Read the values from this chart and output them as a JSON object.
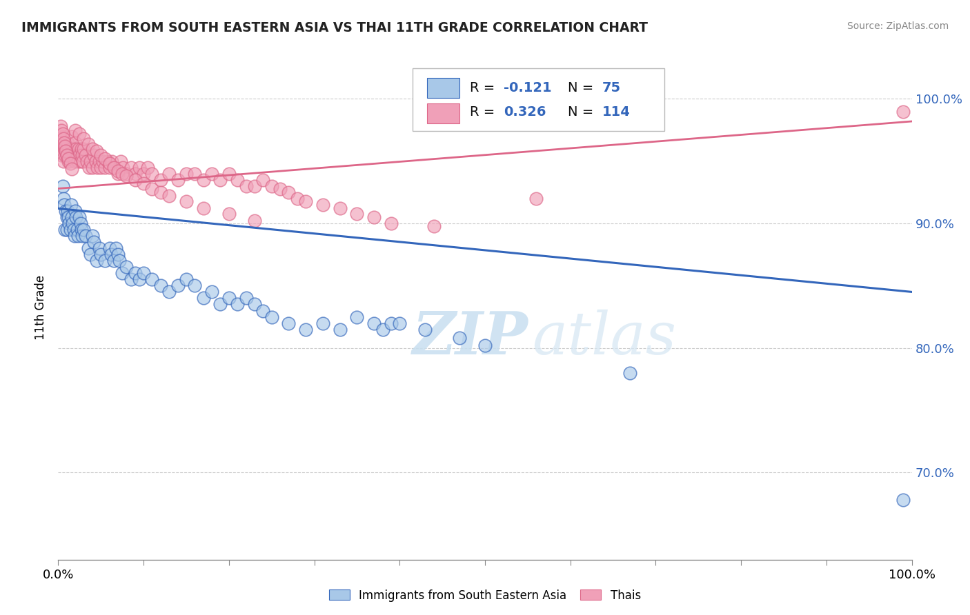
{
  "title": "IMMIGRANTS FROM SOUTH EASTERN ASIA VS THAI 11TH GRADE CORRELATION CHART",
  "source": "Source: ZipAtlas.com",
  "ylabel": "11th Grade",
  "r_blue": -0.121,
  "n_blue": 75,
  "r_pink": 0.326,
  "n_pink": 114,
  "blue_color": "#a8c8e8",
  "pink_color": "#f0a0b8",
  "blue_line_color": "#3366bb",
  "pink_line_color": "#dd6688",
  "watermark_zip": "ZIP",
  "watermark_atlas": "atlas",
  "yaxis_ticks": [
    0.7,
    0.8,
    0.9,
    1.0
  ],
  "yaxis_labels": [
    "70.0%",
    "80.0%",
    "90.0%",
    "100.0%"
  ],
  "grid_color": "#cccccc",
  "legend_label_blue": "Immigrants from South Eastern Asia",
  "legend_label_pink": "Thais",
  "blue_line_x0": 0.0,
  "blue_line_x1": 1.0,
  "blue_line_y0": 0.912,
  "blue_line_y1": 0.845,
  "pink_line_x0": 0.0,
  "pink_line_x1": 1.0,
  "pink_line_y0": 0.928,
  "pink_line_y1": 0.982,
  "ylim_min": 0.63,
  "ylim_max": 1.035,
  "xlim_min": 0.0,
  "xlim_max": 1.0,
  "blue_x": [
    0.005,
    0.006,
    0.007,
    0.008,
    0.009,
    0.01,
    0.01,
    0.011,
    0.012,
    0.013,
    0.014,
    0.015,
    0.016,
    0.017,
    0.018,
    0.019,
    0.02,
    0.021,
    0.022,
    0.023,
    0.025,
    0.026,
    0.027,
    0.028,
    0.03,
    0.032,
    0.035,
    0.038,
    0.04,
    0.042,
    0.045,
    0.048,
    0.05,
    0.055,
    0.06,
    0.062,
    0.065,
    0.068,
    0.07,
    0.072,
    0.075,
    0.08,
    0.085,
    0.09,
    0.095,
    0.1,
    0.11,
    0.12,
    0.13,
    0.14,
    0.15,
    0.16,
    0.17,
    0.18,
    0.19,
    0.2,
    0.21,
    0.22,
    0.23,
    0.24,
    0.25,
    0.27,
    0.29,
    0.31,
    0.33,
    0.35,
    0.37,
    0.38,
    0.39,
    0.4,
    0.43,
    0.47,
    0.5,
    0.67,
    0.99
  ],
  "blue_y": [
    0.93,
    0.92,
    0.915,
    0.895,
    0.91,
    0.905,
    0.895,
    0.91,
    0.905,
    0.9,
    0.895,
    0.915,
    0.905,
    0.9,
    0.895,
    0.89,
    0.91,
    0.905,
    0.895,
    0.89,
    0.905,
    0.9,
    0.895,
    0.89,
    0.895,
    0.89,
    0.88,
    0.875,
    0.89,
    0.885,
    0.87,
    0.88,
    0.875,
    0.87,
    0.88,
    0.875,
    0.87,
    0.88,
    0.875,
    0.87,
    0.86,
    0.865,
    0.855,
    0.86,
    0.855,
    0.86,
    0.855,
    0.85,
    0.845,
    0.85,
    0.855,
    0.85,
    0.84,
    0.845,
    0.835,
    0.84,
    0.835,
    0.84,
    0.835,
    0.83,
    0.825,
    0.82,
    0.815,
    0.82,
    0.815,
    0.825,
    0.82,
    0.815,
    0.82,
    0.82,
    0.815,
    0.808,
    0.802,
    0.78,
    0.678
  ],
  "pink_x": [
    0.002,
    0.003,
    0.004,
    0.005,
    0.006,
    0.007,
    0.008,
    0.009,
    0.01,
    0.011,
    0.012,
    0.013,
    0.014,
    0.015,
    0.016,
    0.017,
    0.018,
    0.019,
    0.02,
    0.021,
    0.022,
    0.023,
    0.024,
    0.025,
    0.026,
    0.027,
    0.028,
    0.029,
    0.03,
    0.032,
    0.034,
    0.036,
    0.038,
    0.04,
    0.042,
    0.044,
    0.046,
    0.048,
    0.05,
    0.052,
    0.055,
    0.058,
    0.06,
    0.063,
    0.066,
    0.07,
    0.073,
    0.076,
    0.08,
    0.085,
    0.09,
    0.095,
    0.1,
    0.105,
    0.11,
    0.12,
    0.13,
    0.14,
    0.15,
    0.16,
    0.17,
    0.18,
    0.19,
    0.2,
    0.21,
    0.22,
    0.23,
    0.24,
    0.25,
    0.26,
    0.27,
    0.28,
    0.29,
    0.31,
    0.33,
    0.35,
    0.37,
    0.39,
    0.02,
    0.025,
    0.03,
    0.035,
    0.04,
    0.045,
    0.05,
    0.055,
    0.06,
    0.065,
    0.07,
    0.075,
    0.08,
    0.09,
    0.1,
    0.11,
    0.12,
    0.13,
    0.15,
    0.17,
    0.2,
    0.23,
    0.003,
    0.004,
    0.005,
    0.006,
    0.007,
    0.008,
    0.009,
    0.01,
    0.012,
    0.014,
    0.016,
    0.44,
    0.56,
    0.99
  ],
  "pink_y": [
    0.96,
    0.965,
    0.955,
    0.97,
    0.95,
    0.96,
    0.955,
    0.96,
    0.955,
    0.965,
    0.95,
    0.96,
    0.955,
    0.96,
    0.97,
    0.96,
    0.955,
    0.95,
    0.965,
    0.96,
    0.955,
    0.95,
    0.96,
    0.955,
    0.95,
    0.96,
    0.955,
    0.95,
    0.96,
    0.955,
    0.95,
    0.945,
    0.95,
    0.945,
    0.955,
    0.95,
    0.945,
    0.95,
    0.945,
    0.95,
    0.945,
    0.95,
    0.945,
    0.95,
    0.945,
    0.94,
    0.95,
    0.945,
    0.94,
    0.945,
    0.94,
    0.945,
    0.94,
    0.945,
    0.94,
    0.935,
    0.94,
    0.935,
    0.94,
    0.94,
    0.935,
    0.94,
    0.935,
    0.94,
    0.935,
    0.93,
    0.93,
    0.935,
    0.93,
    0.928,
    0.925,
    0.92,
    0.918,
    0.915,
    0.912,
    0.908,
    0.905,
    0.9,
    0.975,
    0.972,
    0.968,
    0.964,
    0.96,
    0.958,
    0.955,
    0.952,
    0.948,
    0.945,
    0.942,
    0.94,
    0.938,
    0.935,
    0.932,
    0.928,
    0.925,
    0.922,
    0.918,
    0.912,
    0.908,
    0.902,
    0.978,
    0.975,
    0.972,
    0.968,
    0.965,
    0.962,
    0.958,
    0.955,
    0.952,
    0.948,
    0.944,
    0.898,
    0.92,
    0.99
  ]
}
